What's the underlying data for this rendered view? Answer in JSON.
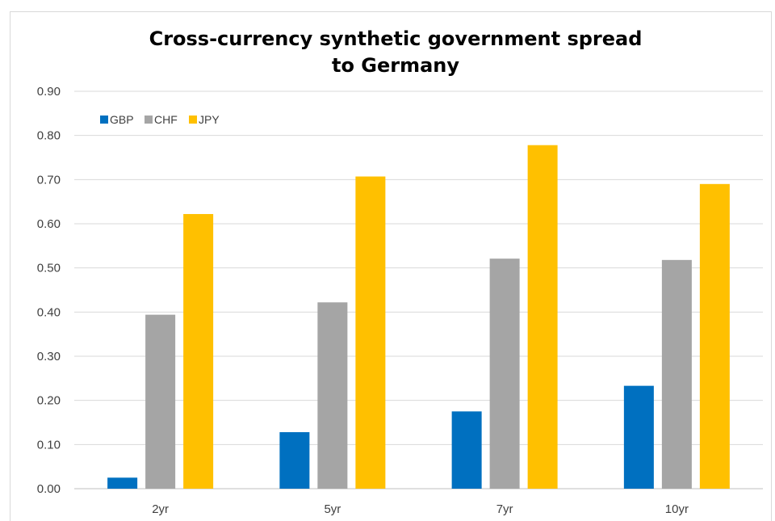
{
  "chart_data": {
    "type": "bar",
    "title": "Cross-currency synthetic government spread to Germany",
    "title_lines": [
      "Cross-currency synthetic government spread",
      "to Germany"
    ],
    "categories": [
      "2yr",
      "5yr",
      "7yr",
      "10yr"
    ],
    "series": [
      {
        "name": "GBP",
        "color": "#0070c0",
        "values": [
          0.025,
          0.128,
          0.175,
          0.233
        ]
      },
      {
        "name": "CHF",
        "color": "#a5a5a5",
        "values": [
          0.394,
          0.422,
          0.521,
          0.518
        ]
      },
      {
        "name": "JPY",
        "color": "#ffc000",
        "values": [
          0.622,
          0.707,
          0.778,
          0.69
        ]
      }
    ],
    "y_ticks": [
      "0.00",
      "0.10",
      "0.20",
      "0.30",
      "0.40",
      "0.50",
      "0.60",
      "0.70",
      "0.80",
      "0.90"
    ],
    "ylim": [
      0,
      0.9
    ],
    "xlabel": "",
    "ylabel": "",
    "grid": true,
    "legend_position": "top-left"
  }
}
